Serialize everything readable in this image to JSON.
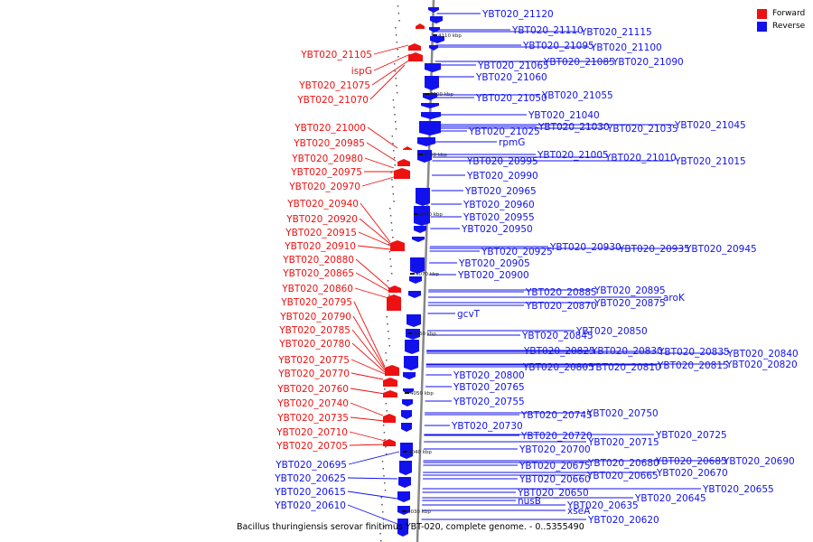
{
  "legend": {
    "forward_label": "Forward",
    "reverse_label": "Reverse",
    "forward_color": "#ee1111",
    "reverse_color": "#1111ee"
  },
  "caption": "Bacillus thuringiensis serovar finitimus YBT-020, complete genome. - 0..5355490",
  "ruler_ticks": [
    "4110 kbp",
    "4100 kbp",
    "4090 kbp",
    "4080 kbp",
    "4070 kbp",
    "4060 kbp",
    "4050 kbp",
    "4040 kbp",
    "4030 kbp"
  ],
  "forward_genes": [
    "YBT020_21105",
    "ispG",
    "YBT020_21075",
    "YBT020_21070",
    "YBT020_21000",
    "YBT020_20985",
    "YBT020_20980",
    "YBT020_20975",
    "YBT020_20970",
    "YBT020_20940",
    "YBT020_20920",
    "YBT020_20915",
    "YBT020_20910",
    "YBT020_20880",
    "YBT020_20865",
    "YBT020_20860",
    "YBT020_20795",
    "YBT020_20790",
    "YBT020_20785",
    "YBT020_20780",
    "YBT020_20775",
    "YBT020_20770",
    "YBT020_20760",
    "YBT020_20740",
    "YBT020_20735",
    "YBT020_20710",
    "YBT020_20705"
  ],
  "reverse_genes_left": [
    "YBT020_20695",
    "YBT020_20625",
    "YBT020_20615",
    "YBT020_20610"
  ],
  "reverse_genes_right": [
    "YBT020_21120",
    "YBT020_21110",
    "YBT020_21115",
    "YBT020_21095",
    "YBT020_21100",
    "YBT020_21065",
    "YBT020_21085",
    "YBT020_21090",
    "YBT020_21060",
    "YBT020_21050",
    "YBT020_21055",
    "YBT020_21040",
    "YBT020_21030",
    "YBT020_21035",
    "YBT020_21045",
    "YBT020_21025",
    "rpmG",
    "YBT020_21005",
    "YBT020_21010",
    "YBT020_21015",
    "YBT020_20995",
    "YBT020_20990",
    "YBT020_20965",
    "YBT020_20960",
    "YBT020_20955",
    "YBT020_20950",
    "YBT020_20930",
    "YBT020_20935",
    "YBT020_20945",
    "YBT020_20925",
    "YBT020_20905",
    "YBT020_20900",
    "YBT020_20895",
    "YBT020_20885",
    "aroK",
    "YBT020_20870",
    "YBT020_20875",
    "gcvT",
    "YBT020_20850",
    "YBT020_20845",
    "YBT020_20840",
    "YBT020_20825",
    "YBT020_20830",
    "YBT020_20835",
    "YBT020_20820",
    "YBT020_20805",
    "YBT020_20810",
    "YBT020_20815",
    "YBT020_20800",
    "YBT020_20765",
    "YBT020_20755",
    "YBT020_20750",
    "YBT020_20745",
    "YBT020_20730",
    "YBT020_20725",
    "YBT020_20720",
    "YBT020_20715",
    "YBT020_20700",
    "YBT020_20690",
    "YBT020_20675",
    "YBT020_20680",
    "YBT020_20685",
    "YBT020_20670",
    "YBT020_20660",
    "YBT020_20665",
    "YBT020_20655",
    "YBT020_20650",
    "YBT020_20645",
    "nusB",
    "YBT020_20635",
    "xseA",
    "YBT020_20620"
  ]
}
